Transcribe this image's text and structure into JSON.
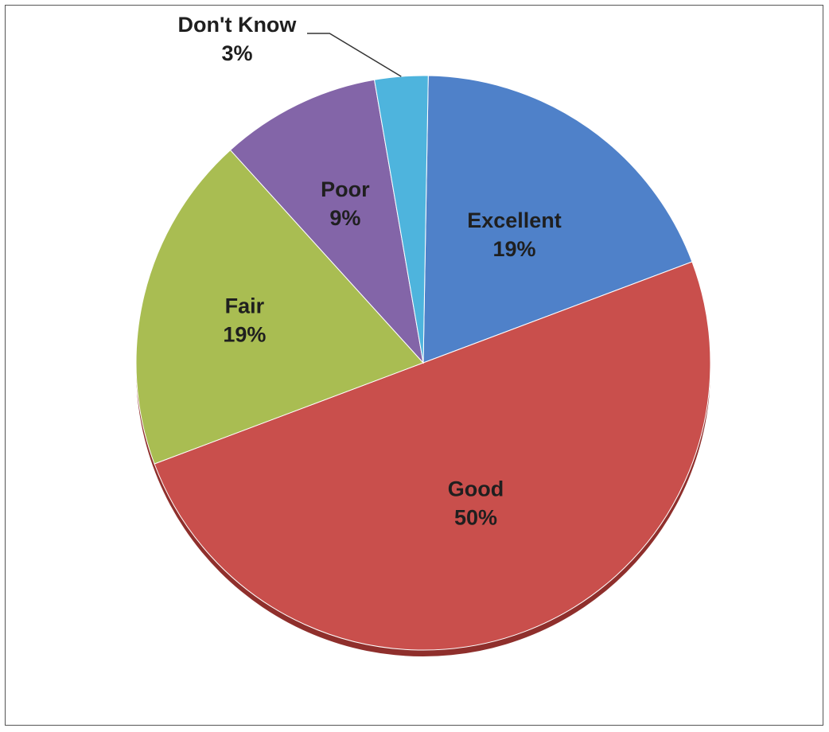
{
  "chart_data": {
    "type": "pie",
    "slices": [
      {
        "label": "Excellent",
        "value": 19,
        "display": "19%",
        "color": "#4f81c9"
      },
      {
        "label": "Good",
        "value": 50,
        "display": "50%",
        "color": "#c94f4c"
      },
      {
        "label": "Fair",
        "value": 19,
        "display": "19%",
        "color": "#a9bd52"
      },
      {
        "label": "Poor",
        "value": 9,
        "display": "9%",
        "color": "#8365a8"
      },
      {
        "label": "Don't Know",
        "value": 3,
        "display": "3%",
        "color": "#4eb4dd"
      }
    ],
    "legend": "none",
    "data_labels": "on-slice"
  }
}
